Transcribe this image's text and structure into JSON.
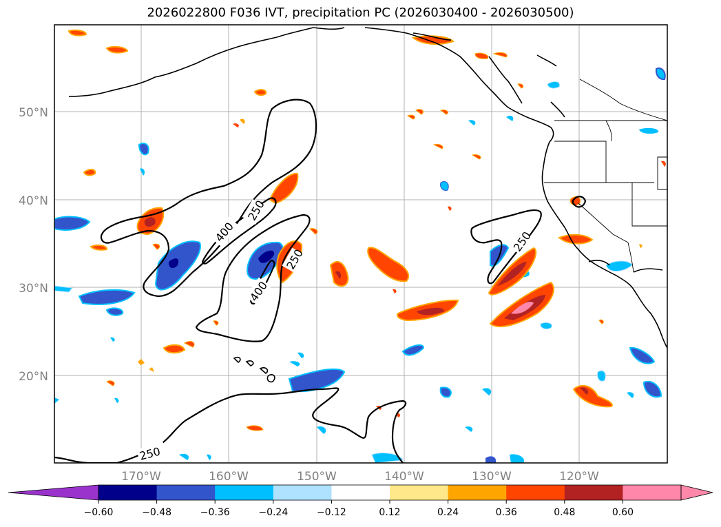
{
  "title": "2026022800 F036 IVT, precipitation PC (2026030400 - 2026030500)",
  "axes": {
    "lon_ticks": [
      "170°W",
      "160°W",
      "150°W",
      "140°W",
      "130°W",
      "120°W"
    ],
    "lat_ticks": [
      "50°N",
      "40°N",
      "30°N",
      "20°N"
    ]
  },
  "contour_labels": [
    "400",
    "250",
    "400",
    "250",
    "250",
    "250"
  ],
  "colorbar": {
    "ticks": [
      "−0.60",
      "−0.48",
      "−0.36",
      "−0.24",
      "−0.12",
      "0.12",
      "0.24",
      "0.36",
      "0.48",
      "0.60"
    ],
    "colors": {
      "below": "#9933cc",
      "bins": [
        "#00008b",
        "#3355cc",
        "#00bfff",
        "#aee2ff",
        "#ffffff",
        "#ffe88a",
        "#ffa500",
        "#ff4500",
        "#b22222",
        "#ff88aa"
      ],
      "above": "#ff88aa"
    }
  }
}
